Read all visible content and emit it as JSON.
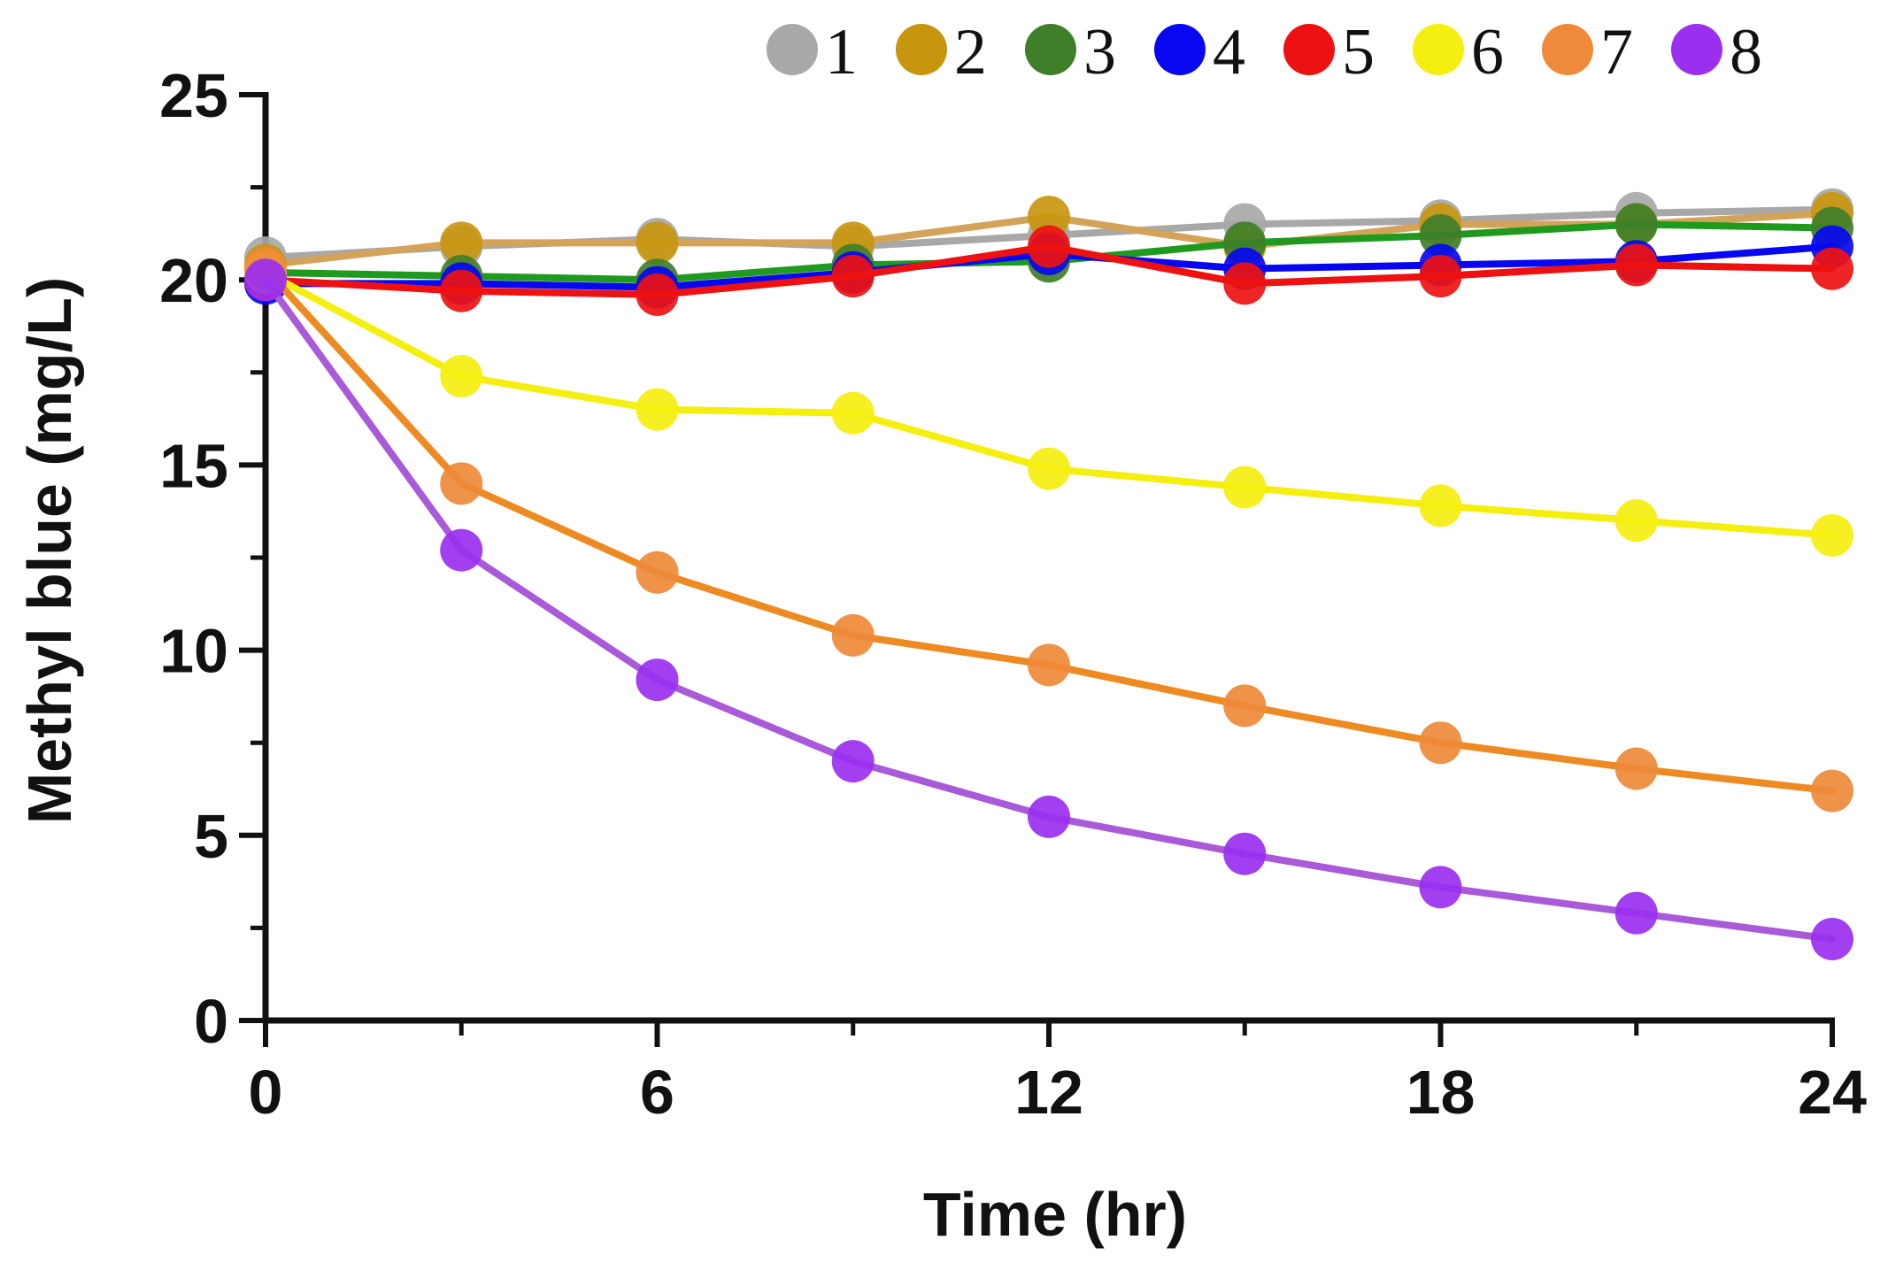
{
  "chart_data": {
    "type": "line",
    "title": "",
    "xlabel": "Time (hr)",
    "ylabel": "Methyl blue (mg/L)",
    "xlim": [
      0,
      24
    ],
    "ylim": [
      0,
      25
    ],
    "x_major_ticks": [
      0,
      6,
      12,
      18,
      24
    ],
    "x_minor_ticks": [
      3,
      9,
      15,
      21
    ],
    "x_tick_labels": [
      "0",
      "6",
      "12",
      "18",
      "24"
    ],
    "y_major_ticks": [
      0,
      5,
      10,
      15,
      20,
      25
    ],
    "y_minor_ticks": [
      2.5,
      7.5,
      12.5,
      17.5,
      22.5
    ],
    "y_tick_labels": [
      "0",
      "5",
      "10",
      "15",
      "20",
      "25"
    ],
    "grid": false,
    "legend_position": "top",
    "x": [
      0,
      3,
      6,
      9,
      12,
      15,
      18,
      21,
      24
    ],
    "series": [
      {
        "name": "1",
        "marker_color": "#a8a8a8",
        "line_color": "#a8a8a8",
        "values": [
          20.6,
          20.9,
          21.1,
          20.9,
          21.2,
          21.5,
          21.6,
          21.8,
          21.9
        ]
      },
      {
        "name": "2",
        "marker_color": "#c8960e",
        "line_color": "#d4a35a",
        "values": [
          20.4,
          21.0,
          21.0,
          21.0,
          21.7,
          20.9,
          21.5,
          21.5,
          21.8
        ]
      },
      {
        "name": "3",
        "marker_color": "#3f7f2a",
        "line_color": "#1f9a1f",
        "values": [
          20.2,
          20.1,
          20.0,
          20.4,
          20.5,
          21.0,
          21.2,
          21.5,
          21.4
        ]
      },
      {
        "name": "4",
        "marker_color": "#0808f0",
        "line_color": "#0808f0",
        "values": [
          19.9,
          19.9,
          19.8,
          20.2,
          20.7,
          20.3,
          20.4,
          20.5,
          20.9
        ]
      },
      {
        "name": "5",
        "marker_color": "#ee1111",
        "line_color": "#ee1111",
        "values": [
          20.0,
          19.7,
          19.6,
          20.1,
          20.9,
          19.9,
          20.1,
          20.4,
          20.3
        ]
      },
      {
        "name": "6",
        "marker_color": "#f5ef10",
        "line_color": "#f5ef10",
        "values": [
          20.2,
          17.4,
          16.5,
          16.4,
          14.9,
          14.4,
          13.9,
          13.5,
          13.1
        ]
      },
      {
        "name": "7",
        "marker_color": "#ee8a3a",
        "line_color": "#ee8a22",
        "values": [
          20.3,
          14.5,
          12.1,
          10.4,
          9.6,
          8.5,
          7.5,
          6.8,
          6.2
        ]
      },
      {
        "name": "8",
        "marker_color": "#9a2ff0",
        "line_color": "#a95ad8",
        "values": [
          20.0,
          12.7,
          9.2,
          7.0,
          5.5,
          4.5,
          3.6,
          2.9,
          2.2
        ]
      }
    ]
  }
}
